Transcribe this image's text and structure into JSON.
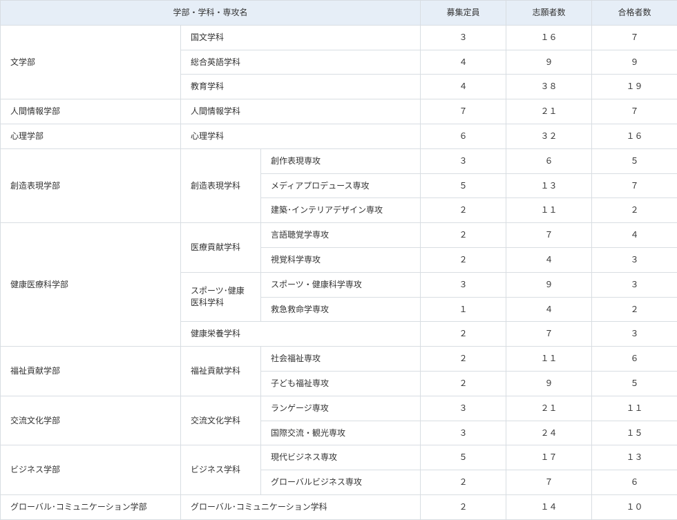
{
  "table": {
    "header_bg": "#e6eef7",
    "border_color": "#d8dde2",
    "text_color": "#333333",
    "font_size_pt": 9,
    "columns": {
      "name_header": "学部・学科・専攻名",
      "capacity": "募集定員",
      "applicants": "志願者数",
      "accepted": "合格者数"
    },
    "faculties": [
      {
        "faculty": "文学部",
        "rows": [
          {
            "dept": "国文学科",
            "major": null,
            "capacity": "３",
            "applicants": "１６",
            "accepted": "７"
          },
          {
            "dept": "総合英語学科",
            "major": null,
            "capacity": "４",
            "applicants": "９",
            "accepted": "９"
          },
          {
            "dept": "教育学科",
            "major": null,
            "capacity": "４",
            "applicants": "３８",
            "accepted": "１９"
          }
        ]
      },
      {
        "faculty": "人間情報学部",
        "rows": [
          {
            "dept": "人間情報学科",
            "major": null,
            "capacity": "７",
            "applicants": "２１",
            "accepted": "７"
          }
        ]
      },
      {
        "faculty": "心理学部",
        "rows": [
          {
            "dept": "心理学科",
            "major": null,
            "capacity": "６",
            "applicants": "３２",
            "accepted": "１６"
          }
        ]
      },
      {
        "faculty": "創造表現学部",
        "dept_label": "創造表現学科",
        "rows": [
          {
            "major": "創作表現専攻",
            "capacity": "３",
            "applicants": "６",
            "accepted": "５"
          },
          {
            "major": "メディアプロデュース専攻",
            "capacity": "５",
            "applicants": "１３",
            "accepted": "７"
          },
          {
            "major": "建築･インテリアデザイン専攻",
            "capacity": "２",
            "applicants": "１１",
            "accepted": "２"
          }
        ]
      },
      {
        "faculty": "健康医療科学部",
        "groups": [
          {
            "dept": "医療貢献学科",
            "rows": [
              {
                "major": "言語聴覚学専攻",
                "capacity": "２",
                "applicants": "７",
                "accepted": "４"
              },
              {
                "major": "視覚科学専攻",
                "capacity": "２",
                "applicants": "４",
                "accepted": "３"
              }
            ]
          },
          {
            "dept": "スポーツ･健康医科学科",
            "rows": [
              {
                "major": "スポーツ・健康科学専攻",
                "capacity": "３",
                "applicants": "９",
                "accepted": "３"
              },
              {
                "major": "救急救命学専攻",
                "capacity": "１",
                "applicants": "４",
                "accepted": "２"
              }
            ]
          },
          {
            "dept": "健康栄養学科",
            "rows": [
              {
                "major": null,
                "capacity": "２",
                "applicants": "７",
                "accepted": "３"
              }
            ]
          }
        ]
      },
      {
        "faculty": "福祉貢献学部",
        "dept_label": "福祉貢献学科",
        "rows": [
          {
            "major": "社会福祉専攻",
            "capacity": "２",
            "applicants": "１１",
            "accepted": "６"
          },
          {
            "major": "子ども福祉専攻",
            "capacity": "２",
            "applicants": "９",
            "accepted": "５"
          }
        ]
      },
      {
        "faculty": "交流文化学部",
        "dept_label": "交流文化学科",
        "rows": [
          {
            "major": "ランゲージ専攻",
            "capacity": "３",
            "applicants": "２１",
            "accepted": "１１"
          },
          {
            "major": "国際交流・観光専攻",
            "capacity": "３",
            "applicants": "２４",
            "accepted": "１５"
          }
        ]
      },
      {
        "faculty": "ビジネス学部",
        "dept_label": "ビジネス学科",
        "rows": [
          {
            "major": "現代ビジネス専攻",
            "capacity": "５",
            "applicants": "１７",
            "accepted": "１３"
          },
          {
            "major": "グローバルビジネス専攻",
            "capacity": "２",
            "applicants": "７",
            "accepted": "６"
          }
        ]
      },
      {
        "faculty": "グローバル･コミュニケーション学部",
        "rows": [
          {
            "dept": "グローバル･コミュニケーション学科",
            "major": null,
            "capacity": "２",
            "applicants": "１４",
            "accepted": "１０"
          }
        ]
      }
    ]
  }
}
